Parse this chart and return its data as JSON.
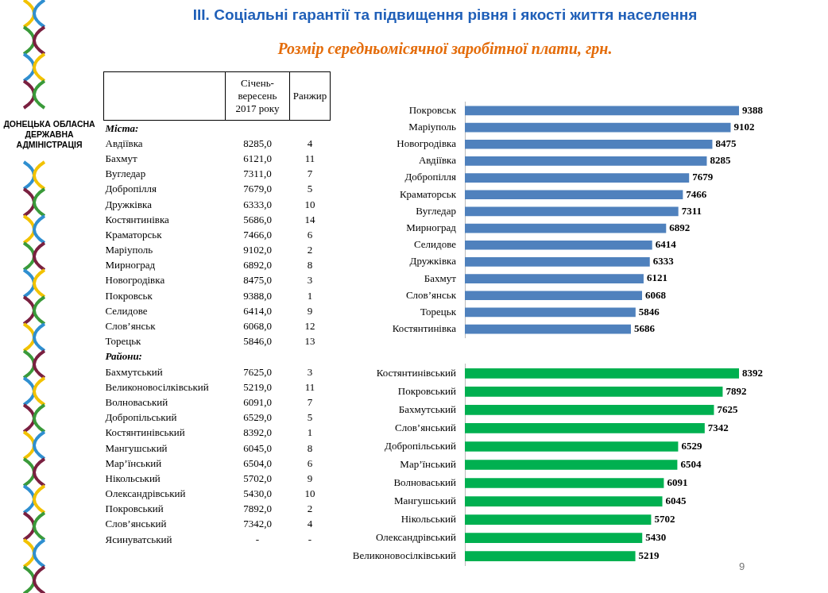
{
  "chart_data": [
    {
      "type": "other",
      "title": "III. Соціальні гарантії та підвищення рівня і якості життя населення",
      "subtitle": "Розмір середньомісячної заробітної плати, грн.",
      "annotations": [
        "ДОНЕЦЬКА ОБЛАСНА ДЕРЖАВНА АДМІНІСТРАЦІЯ",
        "9",
        "Міста:",
        "Райони:"
      ],
      "categories": [
        null,
        "Авдіївка",
        "Бахмут",
        "Вугледар",
        "Добропілля",
        "Дружківка",
        "Костянтинівка",
        "Краматорськ",
        "Маріуполь",
        "Мирноград",
        "Новогродівка",
        "Покровськ",
        "Селидове",
        "Слов’янськ",
        "Торецьк",
        null,
        "Бахмутський",
        "Великоновосілківський",
        "Волноваський",
        "Добропільський",
        "Костянтинівський",
        "Мангушський",
        "Мар’їнський",
        "Нікольський",
        "Олександрівський",
        "Покровський",
        "Слов’янський",
        "Ясинуватський"
      ],
      "series": [
        {
          "name": "Січень-вересень 2017 року",
          "values": [
            null,
            8285,
            6121,
            7311,
            7679,
            6333,
            5686,
            7466,
            9102,
            6892,
            8475,
            9388,
            6414,
            6068,
            5846,
            null,
            7625,
            5219,
            6091,
            6529,
            8392,
            6045,
            6504,
            5702,
            5430,
            7892,
            7342,
            null
          ],
          "value_labels": [
            null,
            "8285,0",
            "6121,0",
            "7311,0",
            "7679,0",
            "6333,0",
            "5686,0",
            "7466,0",
            "9102,0",
            "6892,0",
            "8475,0",
            "9388,0",
            "6414,0",
            "6068,0",
            "5846,0",
            null,
            "7625,0",
            "5219,0",
            "6091,0",
            "6529,0",
            "8392,0",
            "6045,0",
            "6504,0",
            "5702,0",
            "5430,0",
            "7892,0",
            "7342,0",
            "-"
          ]
        },
        {
          "name": "Ранжир",
          "values": [
            null,
            4,
            11,
            7,
            5,
            10,
            14,
            6,
            2,
            8,
            3,
            1,
            9,
            12,
            13,
            null,
            3,
            11,
            7,
            5,
            1,
            8,
            6,
            9,
            10,
            2,
            4,
            null
          ],
          "value_labels": [
            null,
            "4",
            "11",
            "7",
            "5",
            "10",
            "14",
            "6",
            "2",
            "8",
            "3",
            "1",
            "9",
            "12",
            "13",
            null,
            "3",
            "11",
            "7",
            "5",
            "1",
            "8",
            "6",
            "9",
            "10",
            "2",
            "4",
            "-"
          ]
        }
      ]
    },
    {
      "type": "bar",
      "orientation": "horizontal",
      "data_labels": true,
      "color": "#4f81bd",
      "categories": [
        "Покровськ",
        "Маріуполь",
        "Новогродівка",
        "Авдіївка",
        "Добропілля",
        "Краматорськ",
        "Вугледар",
        "Мирноград",
        "Селидове",
        "Дружківка",
        "Бахмут",
        "Слов’янськ",
        "Торецьк",
        "Костянтинівка"
      ],
      "values": [
        9388,
        9102,
        8475,
        8285,
        7679,
        7466,
        7311,
        6892,
        6414,
        6333,
        6121,
        6068,
        5846,
        5686
      ]
    },
    {
      "type": "bar",
      "orientation": "horizontal",
      "data_labels": true,
      "color": "#00b050",
      "categories": [
        "Костянтинівський",
        "Покровський",
        "Бахмутський",
        "Слов’янський",
        "Добропільський",
        "Мар’їнський",
        "Волноваський",
        "Мангушський",
        "Нікольський",
        "Олександрівський",
        "Великоновосілківський"
      ],
      "values": [
        8392,
        7892,
        7625,
        7342,
        6529,
        6504,
        6091,
        6045,
        5702,
        5430,
        5219
      ]
    }
  ]
}
